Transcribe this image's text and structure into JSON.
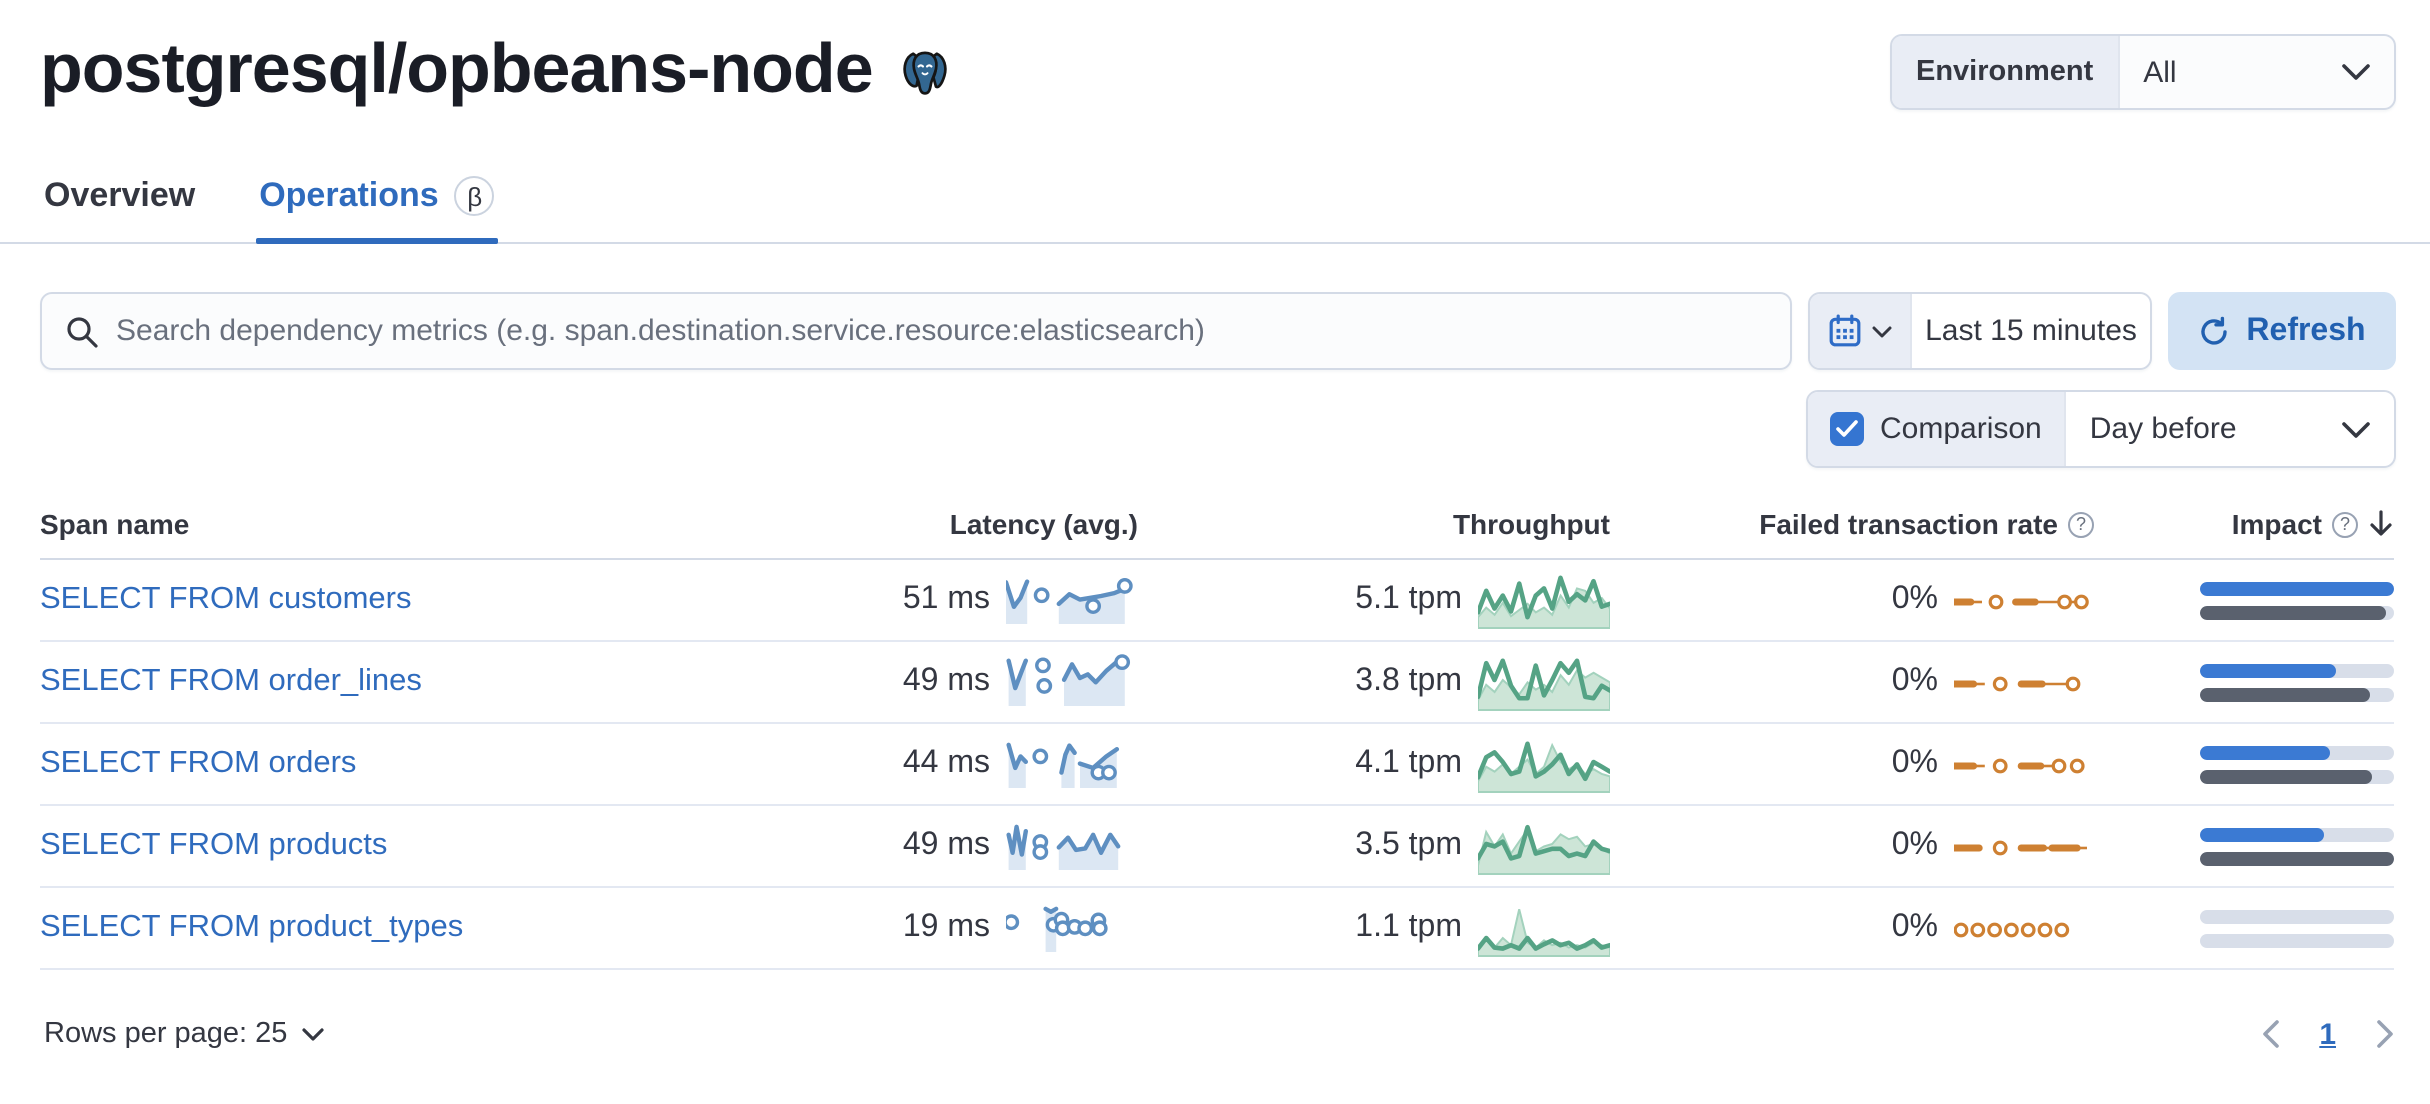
{
  "page": {
    "title": "postgresql/opbeans-node"
  },
  "env_filter": {
    "label": "Environment",
    "value": "All"
  },
  "tabs": [
    {
      "label": "Overview",
      "active": false
    },
    {
      "label": "Operations",
      "active": true,
      "beta": "β"
    }
  ],
  "search": {
    "placeholder": "Search dependency metrics (e.g. span.destination.service.resource:elasticsearch)"
  },
  "time_picker": {
    "value": "Last 15 minutes"
  },
  "refresh": {
    "label": "Refresh"
  },
  "comparison": {
    "label": "Comparison",
    "checked": true,
    "value": "Day before"
  },
  "icons": {
    "postgresql_logo": "elephant",
    "search": "magnifier",
    "calendar": "calendar",
    "refresh": "circular-arrow",
    "question": "question-circle",
    "sort_desc": "arrow-down",
    "chevron": "chevron-down"
  },
  "colors": {
    "link_blue": "#2f6bbd",
    "tab_blue": "#2f6bbd",
    "refresh_bg": "#d3e3f4",
    "refresh_text": "#2160b0",
    "impact_bar_blue": "#3b7ad3",
    "impact_bar_gray": "#5a616e",
    "impact_track": "#d8dee9",
    "spark_blue": "#5e8fc1",
    "spark_blue_fill": "#dce7f3",
    "spark_green": "#55a385",
    "spark_green_fill": "#cde5d7",
    "spark_orange": "#ce8032",
    "postgres_blue": "#336791"
  },
  "table": {
    "columns": [
      "Span name",
      "Latency (avg.)",
      "Throughput",
      "Failed transaction rate",
      "Impact"
    ],
    "rows": [
      {
        "span_name": "SELECT FROM customers",
        "latency": "51 ms",
        "throughput": "5.1 tpm",
        "failed_rate": "0%",
        "impact_pct": 100,
        "impact_previous_pct": 96,
        "latency_spark": {
          "segments": [
            [
              [
                0,
                0.12
              ],
              [
                0.06,
                0.8
              ],
              [
                0.11,
                0.55
              ],
              [
                0.16,
                0.1
              ]
            ],
            [
              [
                0.4,
                0.72
              ],
              [
                0.48,
                0.45
              ],
              [
                0.56,
                0.6
              ],
              [
                0.64,
                0.55
              ],
              [
                0.72,
                0.5
              ],
              [
                0.82,
                0.42
              ],
              [
                0.9,
                0.3
              ]
            ]
          ],
          "dots": [
            [
              0.27,
              0.48
            ],
            [
              0.66,
              0.78
            ],
            [
              0.9,
              0.22
            ]
          ]
        },
        "throughput_spark": {
          "line": [
            0.8,
            0.35,
            0.72,
            0.45,
            0.78,
            0.2,
            0.9,
            0.45,
            0.3,
            0.72,
            0.08,
            0.58,
            0.42,
            0.55,
            0.15,
            0.68,
            0.62
          ],
          "comparison": [
            0.9,
            0.7,
            0.85,
            0.6,
            0.88,
            0.75,
            0.62,
            0.8,
            0.7,
            0.85,
            0.45,
            0.7,
            0.3,
            0.35,
            0.6,
            0.5,
            0.72
          ]
        },
        "failed_spark": [
          [
            "dash",
            0,
            0.12
          ],
          [
            "line",
            0.12,
            0.2
          ],
          [
            "circle",
            0.3
          ],
          [
            "dash",
            0.44,
            0.58
          ],
          [
            "line",
            0.58,
            0.76
          ],
          [
            "circle",
            0.79
          ],
          [
            "line",
            0.83,
            0.88
          ],
          [
            "circle",
            0.91
          ]
        ]
      },
      {
        "span_name": "SELECT FROM order_lines",
        "latency": "49 ms",
        "throughput": "3.8 tpm",
        "failed_rate": "0%",
        "impact_pct": 70,
        "impact_previous_pct": 88,
        "latency_spark": {
          "segments": [
            [
              [
                0.02,
                0.02
              ],
              [
                0.07,
                0.78
              ],
              [
                0.12,
                0.3
              ],
              [
                0.15,
                0.02
              ]
            ],
            [
              [
                0.44,
                0.55
              ],
              [
                0.5,
                0.12
              ],
              [
                0.56,
                0.5
              ],
              [
                0.62,
                0.4
              ],
              [
                0.68,
                0.62
              ],
              [
                0.76,
                0.3
              ],
              [
                0.84,
                0.05
              ],
              [
                0.9,
                0.18
              ]
            ]
          ],
          "dots": [
            [
              0.28,
              0.15
            ],
            [
              0.29,
              0.72
            ],
            [
              0.88,
              0.06
            ]
          ]
        },
        "throughput_spark": {
          "line": [
            0.85,
            0.15,
            0.5,
            0.1,
            0.62,
            0.88,
            0.88,
            0.2,
            0.82,
            0.5,
            0.15,
            0.35,
            0.1,
            0.85,
            0.88,
            0.62,
            0.72
          ],
          "comparison": [
            0.92,
            0.6,
            0.75,
            0.5,
            0.65,
            0.8,
            0.55,
            0.7,
            0.6,
            0.75,
            0.4,
            0.6,
            0.3,
            0.45,
            0.35,
            0.45,
            0.55
          ]
        },
        "failed_spark": [
          [
            "dash",
            0,
            0.14
          ],
          [
            "line",
            0.14,
            0.22
          ],
          [
            "circle",
            0.33
          ],
          [
            "dash",
            0.48,
            0.63
          ],
          [
            "line",
            0.63,
            0.82
          ],
          [
            "circle",
            0.85
          ]
        ]
      },
      {
        "span_name": "SELECT FROM orders",
        "latency": "44 ms",
        "throughput": "4.1 tpm",
        "failed_rate": "0%",
        "impact_pct": 67,
        "impact_previous_pct": 89,
        "latency_spark": {
          "segments": [
            [
              [
                0.02,
                0.08
              ],
              [
                0.07,
                0.72
              ],
              [
                0.11,
                0.4
              ],
              [
                0.15,
                0.55
              ]
            ],
            [
              [
                0.42,
                0.85
              ],
              [
                0.45,
                0.35
              ],
              [
                0.48,
                0.1
              ],
              [
                0.52,
                0.3
              ]
            ],
            [
              [
                0.56,
                0.6
              ],
              [
                0.66,
                0.72
              ],
              [
                0.76,
                0.4
              ],
              [
                0.84,
                0.2
              ]
            ]
          ],
          "dots": [
            [
              0.26,
              0.4
            ],
            [
              0.7,
              0.85
            ],
            [
              0.78,
              0.85
            ]
          ]
        },
        "throughput_spark": {
          "line": [
            0.82,
            0.4,
            0.3,
            0.5,
            0.75,
            0.7,
            0.12,
            0.8,
            0.7,
            0.55,
            0.35,
            0.75,
            0.55,
            0.85,
            0.5,
            0.6,
            0.7
          ],
          "comparison": [
            0.9,
            0.6,
            0.7,
            0.55,
            0.75,
            0.6,
            0.45,
            0.75,
            0.6,
            0.15,
            0.5,
            0.65,
            0.55,
            0.75,
            0.65,
            0.75,
            0.8
          ]
        },
        "failed_spark": [
          [
            "dash",
            0,
            0.14
          ],
          [
            "line",
            0.14,
            0.22
          ],
          [
            "circle",
            0.33
          ],
          [
            "dash",
            0.48,
            0.62
          ],
          [
            "line",
            0.62,
            0.72
          ],
          [
            "circle",
            0.75
          ],
          [
            "circle",
            0.88
          ]
        ]
      },
      {
        "span_name": "SELECT FROM products",
        "latency": "49 ms",
        "throughput": "3.5 tpm",
        "failed_rate": "0%",
        "impact_pct": 64,
        "impact_previous_pct": 100,
        "latency_spark": {
          "segments": [
            [
              [
                0.02,
                0.3
              ],
              [
                0.05,
                0.8
              ],
              [
                0.08,
                0.08
              ],
              [
                0.12,
                0.85
              ],
              [
                0.15,
                0.2
              ]
            ],
            [
              [
                0.4,
                0.65
              ],
              [
                0.47,
                0.38
              ],
              [
                0.53,
                0.72
              ],
              [
                0.6,
                0.68
              ],
              [
                0.66,
                0.3
              ],
              [
                0.72,
                0.8
              ],
              [
                0.79,
                0.3
              ],
              [
                0.85,
                0.62
              ]
            ]
          ],
          "dots": [
            [
              0.26,
              0.5
            ],
            [
              0.26,
              0.78
            ]
          ]
        },
        "throughput_spark": {
          "line": [
            0.8,
            0.5,
            0.55,
            0.45,
            0.8,
            0.75,
            0.15,
            0.7,
            0.65,
            0.6,
            0.6,
            0.75,
            0.7,
            0.75,
            0.45,
            0.6,
            0.65
          ],
          "comparison": [
            0.95,
            0.25,
            0.55,
            0.3,
            0.7,
            0.45,
            0.2,
            0.65,
            0.55,
            0.5,
            0.3,
            0.4,
            0.35,
            0.55,
            0.5,
            0.6,
            0.7
          ]
        },
        "failed_spark": [
          [
            "dash",
            0,
            0.18
          ],
          [
            "circle",
            0.33
          ],
          [
            "dash",
            0.48,
            0.64
          ],
          [
            "line",
            0.64,
            0.7
          ],
          [
            "dash",
            0.7,
            0.88
          ],
          [
            "line",
            0.88,
            0.95
          ]
        ]
      },
      {
        "span_name": "SELECT FROM product_types",
        "latency": "19 ms",
        "throughput": "1.1 tpm",
        "failed_rate": "0%",
        "impact_pct": 0,
        "impact_previous_pct": 0,
        "latency_spark": {
          "segments": [
            [
              [
                0.3,
                0.08
              ],
              [
                0.34,
                0.16
              ],
              [
                0.38,
                0.08
              ]
            ]
          ],
          "dots": [
            [
              0.04,
              0.45
            ],
            [
              0.36,
              0.52
            ],
            [
              0.42,
              0.38
            ],
            [
              0.43,
              0.62
            ],
            [
              0.52,
              0.58
            ],
            [
              0.6,
              0.62
            ],
            [
              0.7,
              0.4
            ],
            [
              0.71,
              0.62
            ]
          ]
        },
        "throughput_spark": {
          "line": [
            0.97,
            0.75,
            0.95,
            0.97,
            0.9,
            0.97,
            0.75,
            0.97,
            0.88,
            0.8,
            0.9,
            0.85,
            0.97,
            0.9,
            0.8,
            0.95,
            0.9
          ],
          "comparison": [
            1,
            0.8,
            0.95,
            0.75,
            0.9,
            0.15,
            0.85,
            0.95,
            0.8,
            0.9,
            0.85,
            0.95,
            0.9,
            0.95,
            0.85,
            0.9,
            0.95
          ]
        },
        "failed_spark": [
          [
            "circle",
            0.05
          ],
          [
            "circle",
            0.17
          ],
          [
            "circle",
            0.29
          ],
          [
            "circle",
            0.41
          ],
          [
            "circle",
            0.53
          ],
          [
            "circle",
            0.65
          ],
          [
            "circle",
            0.77
          ]
        ]
      }
    ]
  },
  "pagination": {
    "rows_per_page_label": "Rows per page: 25",
    "current_page": "1"
  }
}
